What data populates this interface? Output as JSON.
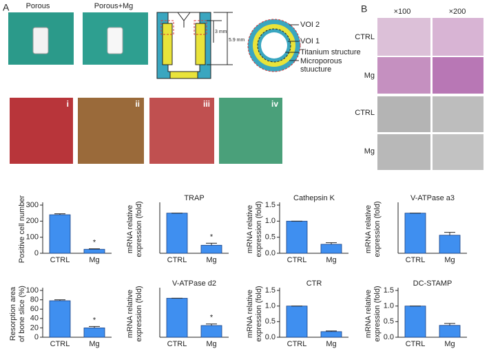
{
  "panel_labels": [
    "A",
    "B"
  ],
  "implant_photos": [
    "Porous",
    "Porous+Mg"
  ],
  "diagram": {
    "dim_inner": "3 mm",
    "dim_outer": "5.9 mm",
    "voi2": "VOI 2",
    "voi1": "VOI 1",
    "titanium": "Titanium structure",
    "microporous_1": "Microporous",
    "microporous_2": "stuucture"
  },
  "surgery_photos": [
    "i",
    "ii",
    "iii",
    "iv"
  ],
  "panel_b": {
    "columns": [
      "×100",
      "×200"
    ],
    "rows": [
      "CTRL",
      "Mg",
      "CTRL",
      "Mg"
    ]
  },
  "chart_data": [
    {
      "type": "bar",
      "y_label": [
        "Positive cell number"
      ],
      "categories": [
        "CTRL",
        "Mg"
      ],
      "values": [
        240,
        25
      ],
      "errors": [
        6,
        3
      ],
      "annotation": "*",
      "color": "#3f8ff0",
      "ylim": [
        0,
        300
      ],
      "yticks": [
        0,
        100,
        200,
        300
      ]
    },
    {
      "type": "bar",
      "title": "TRAP",
      "y_label": [
        "mRNA relative",
        "expression (fold)"
      ],
      "categories": [
        "CTRL",
        "Mg"
      ],
      "values": [
        1.0,
        0.2
      ],
      "errors": [
        0,
        0.05
      ],
      "annotation": "*",
      "color": "#3f8ff0",
      "ylim": [
        0,
        1.2
      ]
    },
    {
      "type": "bar",
      "title": "Cathepsin K",
      "y_label": [
        "mRNA relative",
        "expression (fold)"
      ],
      "categories": [
        "CTRL",
        "Mg"
      ],
      "values": [
        1.0,
        0.28
      ],
      "errors": [
        0,
        0.05
      ],
      "color": "#3f8ff0",
      "ylim": [
        0,
        1.5
      ],
      "yticks": [
        {
          "value": 0,
          "label": "0.0"
        },
        0.5,
        {
          "value": 1,
          "label": "1.0"
        },
        1.5
      ]
    },
    {
      "type": "bar",
      "title": "V-ATPase a3",
      "y_label": [
        "mRNA relative",
        "expression (fold)"
      ],
      "categories": [
        "CTRL",
        "Mg"
      ],
      "values": [
        1.0,
        0.45
      ],
      "errors": [
        0,
        0.07
      ],
      "color": "#3f8ff0",
      "ylim": [
        0,
        1.2
      ]
    },
    {
      "type": "bar",
      "y_label": [
        "Resorption area",
        "of bone slice (%)"
      ],
      "categories": [
        "CTRL",
        "Mg"
      ],
      "values": [
        78,
        20
      ],
      "errors": [
        2,
        3
      ],
      "annotation": "*",
      "color": "#3f8ff0",
      "ylim": [
        0,
        100
      ],
      "yticks": [
        0,
        20,
        40,
        60,
        80,
        100
      ]
    },
    {
      "type": "bar",
      "title": "V-ATPase d2",
      "y_label": [
        "mRNA relative",
        "expression (fold)"
      ],
      "categories": [
        "CTRL",
        "Mg"
      ],
      "values": [
        1.0,
        0.3
      ],
      "errors": [
        0,
        0.04
      ],
      "annotation": "*",
      "color": "#3f8ff0",
      "ylim": [
        0,
        1.2
      ]
    },
    {
      "type": "bar",
      "title": "CTR",
      "y_label": [
        "mRNA relative",
        "expression (fold)"
      ],
      "categories": [
        "CTRL",
        "Mg"
      ],
      "values": [
        1.0,
        0.18
      ],
      "errors": [
        0,
        0.02
      ],
      "color": "#3f8ff0",
      "ylim": [
        0,
        1.5
      ],
      "yticks": [
        {
          "value": 0,
          "label": "0.0"
        },
        0.5,
        {
          "value": 1,
          "label": "1.0"
        },
        1.5
      ]
    },
    {
      "type": "bar",
      "title": "DC-STAMP",
      "y_label": [
        "mRNA relative",
        "expression (fold)"
      ],
      "categories": [
        "CTRL",
        "Mg"
      ],
      "values": [
        1.0,
        0.38
      ],
      "errors": [
        0,
        0.06
      ],
      "color": "#3f8ff0",
      "ylim": [
        0,
        1.5
      ],
      "yticks": [
        {
          "value": 0,
          "label": "0.0"
        },
        0.5,
        {
          "value": 1,
          "label": "1.0"
        },
        1.5
      ]
    }
  ]
}
